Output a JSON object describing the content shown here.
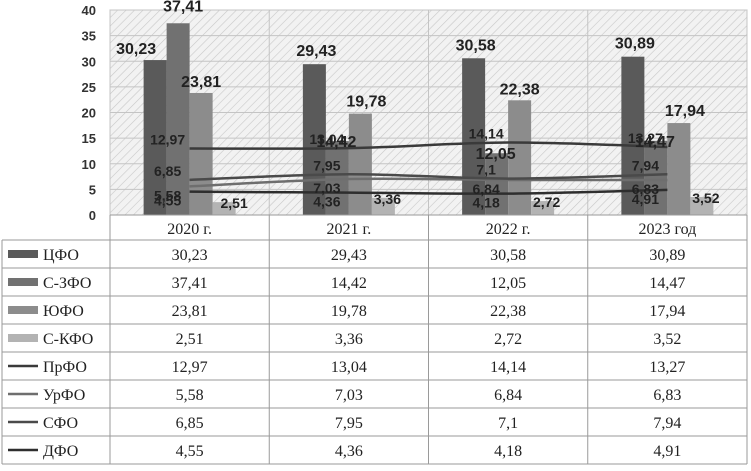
{
  "chart_data": {
    "type": "bar",
    "title": "",
    "xlabel": "",
    "ylabel": "",
    "ylim": [
      0,
      40
    ],
    "yticks": [
      0,
      5,
      10,
      15,
      20,
      25,
      30,
      35,
      40
    ],
    "grid": true,
    "legend": "data-table",
    "categories": [
      "2020 г.",
      "2021 г.",
      "2022 г.",
      "2023 год"
    ],
    "series": [
      {
        "name": "ЦФО",
        "kind": "bar",
        "color": "#5a5a5a",
        "values": [
          30.23,
          29.43,
          30.58,
          30.89
        ],
        "labels": [
          "30,23",
          "29,43",
          "30,58",
          "30,89"
        ]
      },
      {
        "name": "С-ЗФО",
        "kind": "bar",
        "color": "#717171",
        "values": [
          37.41,
          14.42,
          12.05,
          14.47
        ],
        "labels": [
          "37,41",
          "14,42",
          "12,05",
          "14,47"
        ]
      },
      {
        "name": "ЮФО",
        "kind": "bar",
        "color": "#8c8c8c",
        "values": [
          23.81,
          19.78,
          22.38,
          17.94
        ],
        "labels": [
          "23,81",
          "19,78",
          "22,38",
          "17,94"
        ]
      },
      {
        "name": "С-КФО",
        "kind": "bar",
        "color": "#b3b3b3",
        "values": [
          2.51,
          3.36,
          2.72,
          3.52
        ],
        "labels": [
          "2,51",
          "3,36",
          "2,72",
          "3,52"
        ]
      },
      {
        "name": "ПрФО",
        "kind": "line",
        "color": "#3a3a3a",
        "values": [
          12.97,
          13.04,
          14.14,
          13.27
        ],
        "labels": [
          "12,97",
          "13,04",
          "14,14",
          "13,27"
        ]
      },
      {
        "name": "УрФО",
        "kind": "line",
        "color": "#6e6e6e",
        "values": [
          5.58,
          7.03,
          6.84,
          6.83
        ],
        "labels": [
          "5,58",
          "7,03",
          "6,84",
          "6,83"
        ]
      },
      {
        "name": "СФО",
        "kind": "line",
        "color": "#4a4a4a",
        "values": [
          6.85,
          7.95,
          7.1,
          7.94
        ],
        "labels": [
          "6,85",
          "7,95",
          "7,1",
          "7,94"
        ]
      },
      {
        "name": "ДФО",
        "kind": "line",
        "color": "#2e2e2e",
        "values": [
          4.55,
          4.36,
          4.18,
          4.91
        ],
        "labels": [
          "4,55",
          "4,36",
          "4,18",
          "4,91"
        ]
      }
    ]
  }
}
